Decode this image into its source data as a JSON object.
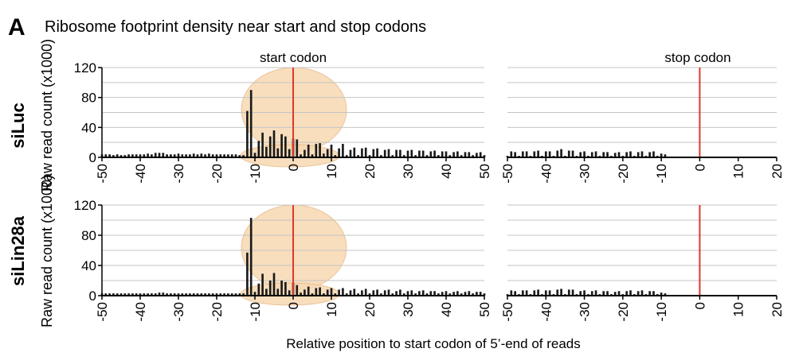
{
  "panel_letter": "A",
  "title": "Ribosome footprint density near start and stop codons",
  "xlabel": "Relative position to start codon of 5’-end of reads",
  "colors": {
    "bars": "#1a1a1a",
    "codon_line": "#e0372e",
    "grid": "#c4c4c4",
    "ribosome": "#f7d9b2",
    "ribosome_edge": "#e8b98a"
  },
  "chart_data": [
    {
      "type": "bar",
      "row_label": "siLuc",
      "ylabel": "Raw read count (x1000)",
      "annotation": "start codon",
      "xlim": [
        -50,
        50
      ],
      "ylim": [
        0,
        120
      ],
      "yticks": [
        0,
        40,
        80,
        120
      ],
      "xticks": [
        -50,
        -40,
        -30,
        -20,
        -10,
        0,
        10,
        20,
        30,
        40,
        50
      ],
      "grid": true,
      "vline_x": 0,
      "x": [
        -50,
        -49,
        -48,
        -47,
        -46,
        -45,
        -44,
        -43,
        -42,
        -41,
        -40,
        -39,
        -38,
        -37,
        -36,
        -35,
        -34,
        -33,
        -32,
        -31,
        -30,
        -29,
        -28,
        -27,
        -26,
        -25,
        -24,
        -23,
        -22,
        -21,
        -20,
        -19,
        -18,
        -17,
        -16,
        -15,
        -14,
        -13,
        -12,
        -11,
        -10,
        -9,
        -8,
        -7,
        -6,
        -5,
        -4,
        -3,
        -2,
        -1,
        0,
        1,
        2,
        3,
        4,
        5,
        6,
        7,
        8,
        9,
        10,
        11,
        12,
        13,
        14,
        15,
        16,
        17,
        18,
        19,
        20,
        21,
        22,
        23,
        24,
        25,
        26,
        27,
        28,
        29,
        30,
        31,
        32,
        33,
        34,
        35,
        36,
        37,
        38,
        39,
        40,
        41,
        42,
        43,
        44,
        45,
        46,
        47,
        48,
        49,
        50
      ],
      "values": [
        4,
        4,
        4,
        3,
        4,
        3,
        3,
        4,
        4,
        4,
        4,
        4,
        5,
        4,
        6,
        6,
        6,
        4,
        4,
        4,
        5,
        4,
        4,
        4,
        5,
        4,
        5,
        4,
        5,
        4,
        4,
        4,
        4,
        4,
        4,
        4,
        3,
        3,
        62,
        90,
        6,
        22,
        33,
        14,
        28,
        36,
        12,
        31,
        28,
        11,
        25,
        24,
        4,
        10,
        17,
        4,
        18,
        19,
        5,
        11,
        17,
        3,
        12,
        18,
        3,
        10,
        13,
        3,
        12,
        13,
        3,
        11,
        12,
        3,
        10,
        11,
        3,
        10,
        10,
        3,
        9,
        10,
        3,
        9,
        9,
        3,
        8,
        9,
        3,
        8,
        8,
        3,
        7,
        8,
        3,
        7,
        7,
        3,
        6,
        7,
        3
      ]
    },
    {
      "type": "bar",
      "row_label": "siLuc",
      "annotation": "stop codon",
      "xlim": [
        -50,
        20
      ],
      "ylim": [
        0,
        120
      ],
      "xticks": [
        -50,
        -40,
        -30,
        -20,
        -10,
        0,
        10,
        20
      ],
      "grid": true,
      "vline_x": 0,
      "x": [
        -50,
        -49,
        -48,
        -47,
        -46,
        -45,
        -44,
        -43,
        -42,
        -41,
        -40,
        -39,
        -38,
        -37,
        -36,
        -35,
        -34,
        -33,
        -32,
        -31,
        -30,
        -29,
        -28,
        -27,
        -26,
        -25,
        -24,
        -23,
        -22,
        -21,
        -20,
        -19,
        -18,
        -17,
        -16,
        -15,
        -14,
        -13,
        -12,
        -11,
        -10,
        -9,
        -8,
        -7,
        -6,
        -5,
        -4,
        -3,
        -2,
        -1,
        0,
        1,
        2,
        3,
        4,
        5,
        6,
        7,
        8,
        9,
        10,
        11,
        12,
        13,
        14,
        15,
        16,
        17,
        18,
        19,
        20
      ],
      "values": [
        2,
        8,
        7,
        2,
        8,
        8,
        2,
        8,
        9,
        2,
        8,
        8,
        2,
        9,
        11,
        2,
        9,
        9,
        2,
        7,
        8,
        2,
        7,
        8,
        2,
        7,
        7,
        2,
        6,
        7,
        2,
        7,
        8,
        2,
        7,
        8,
        2,
        7,
        8,
        2,
        5,
        4,
        0,
        0,
        0,
        0,
        0,
        0,
        0,
        0,
        0,
        0,
        0,
        0,
        0,
        0,
        0,
        0,
        0,
        0,
        0,
        0,
        0,
        0,
        0,
        0,
        0,
        0,
        0,
        0,
        0
      ]
    },
    {
      "type": "bar",
      "row_label": "siLin28a",
      "ylabel": "Raw read count (x1000)",
      "xlim": [
        -50,
        50
      ],
      "ylim": [
        0,
        120
      ],
      "yticks": [
        0,
        40,
        80,
        120
      ],
      "xticks": [
        -50,
        -40,
        -30,
        -20,
        -10,
        0,
        10,
        20,
        30,
        40,
        50
      ],
      "grid": true,
      "vline_x": 0,
      "x": [
        -50,
        -49,
        -48,
        -47,
        -46,
        -45,
        -44,
        -43,
        -42,
        -41,
        -40,
        -39,
        -38,
        -37,
        -36,
        -35,
        -34,
        -33,
        -32,
        -31,
        -30,
        -29,
        -28,
        -27,
        -26,
        -25,
        -24,
        -23,
        -22,
        -21,
        -20,
        -19,
        -18,
        -17,
        -16,
        -15,
        -14,
        -13,
        -12,
        -11,
        -10,
        -9,
        -8,
        -7,
        -6,
        -5,
        -4,
        -3,
        -2,
        -1,
        0,
        1,
        2,
        3,
        4,
        5,
        6,
        7,
        8,
        9,
        10,
        11,
        12,
        13,
        14,
        15,
        16,
        17,
        18,
        19,
        20,
        21,
        22,
        23,
        24,
        25,
        26,
        27,
        28,
        29,
        30,
        31,
        32,
        33,
        34,
        35,
        36,
        37,
        38,
        39,
        40,
        41,
        42,
        43,
        44,
        45,
        46,
        47,
        48,
        49,
        50
      ],
      "values": [
        3,
        3,
        3,
        3,
        3,
        3,
        3,
        3,
        3,
        3,
        3,
        3,
        3,
        3,
        3,
        4,
        4,
        3,
        3,
        3,
        3,
        3,
        3,
        3,
        3,
        3,
        3,
        3,
        3,
        3,
        3,
        3,
        3,
        3,
        3,
        3,
        3,
        3,
        57,
        103,
        5,
        16,
        29,
        9,
        20,
        30,
        9,
        20,
        18,
        7,
        17,
        14,
        4,
        8,
        12,
        3,
        10,
        11,
        3,
        8,
        10,
        3,
        8,
        10,
        3,
        7,
        9,
        3,
        7,
        9,
        3,
        7,
        8,
        3,
        7,
        8,
        3,
        6,
        8,
        3,
        6,
        7,
        3,
        6,
        7,
        3,
        6,
        6,
        3,
        5,
        6,
        3,
        5,
        6,
        3,
        5,
        6,
        3,
        5,
        5,
        3
      ]
    },
    {
      "type": "bar",
      "row_label": "siLin28a",
      "xlim": [
        -50,
        20
      ],
      "ylim": [
        0,
        120
      ],
      "xticks": [
        -50,
        -40,
        -30,
        -20,
        -10,
        0,
        10,
        20
      ],
      "grid": true,
      "vline_x": 0,
      "x": [
        -50,
        -49,
        -48,
        -47,
        -46,
        -45,
        -44,
        -43,
        -42,
        -41,
        -40,
        -39,
        -38,
        -37,
        -36,
        -35,
        -34,
        -33,
        -32,
        -31,
        -30,
        -29,
        -28,
        -27,
        -26,
        -25,
        -24,
        -23,
        -22,
        -21,
        -20,
        -19,
        -18,
        -17,
        -16,
        -15,
        -14,
        -13,
        -12,
        -11,
        -10,
        -9,
        -8,
        -7,
        -6,
        -5,
        -4,
        -3,
        -2,
        -1,
        0,
        1,
        2,
        3,
        4,
        5,
        6,
        7,
        8,
        9,
        10,
        11,
        12,
        13,
        14,
        15,
        16,
        17,
        18,
        19,
        20
      ],
      "values": [
        2,
        7,
        6,
        2,
        7,
        7,
        2,
        7,
        8,
        2,
        7,
        7,
        2,
        8,
        9,
        2,
        8,
        8,
        2,
        6,
        7,
        2,
        6,
        7,
        2,
        6,
        6,
        2,
        5,
        6,
        2,
        6,
        7,
        2,
        6,
        7,
        2,
        6,
        6,
        2,
        4,
        3,
        0,
        0,
        0,
        0,
        0,
        0,
        0,
        0,
        0,
        0,
        0,
        0,
        0,
        0,
        0,
        0,
        0,
        0,
        0,
        0,
        0,
        0,
        0,
        0,
        0,
        0,
        0,
        0,
        0
      ]
    }
  ]
}
